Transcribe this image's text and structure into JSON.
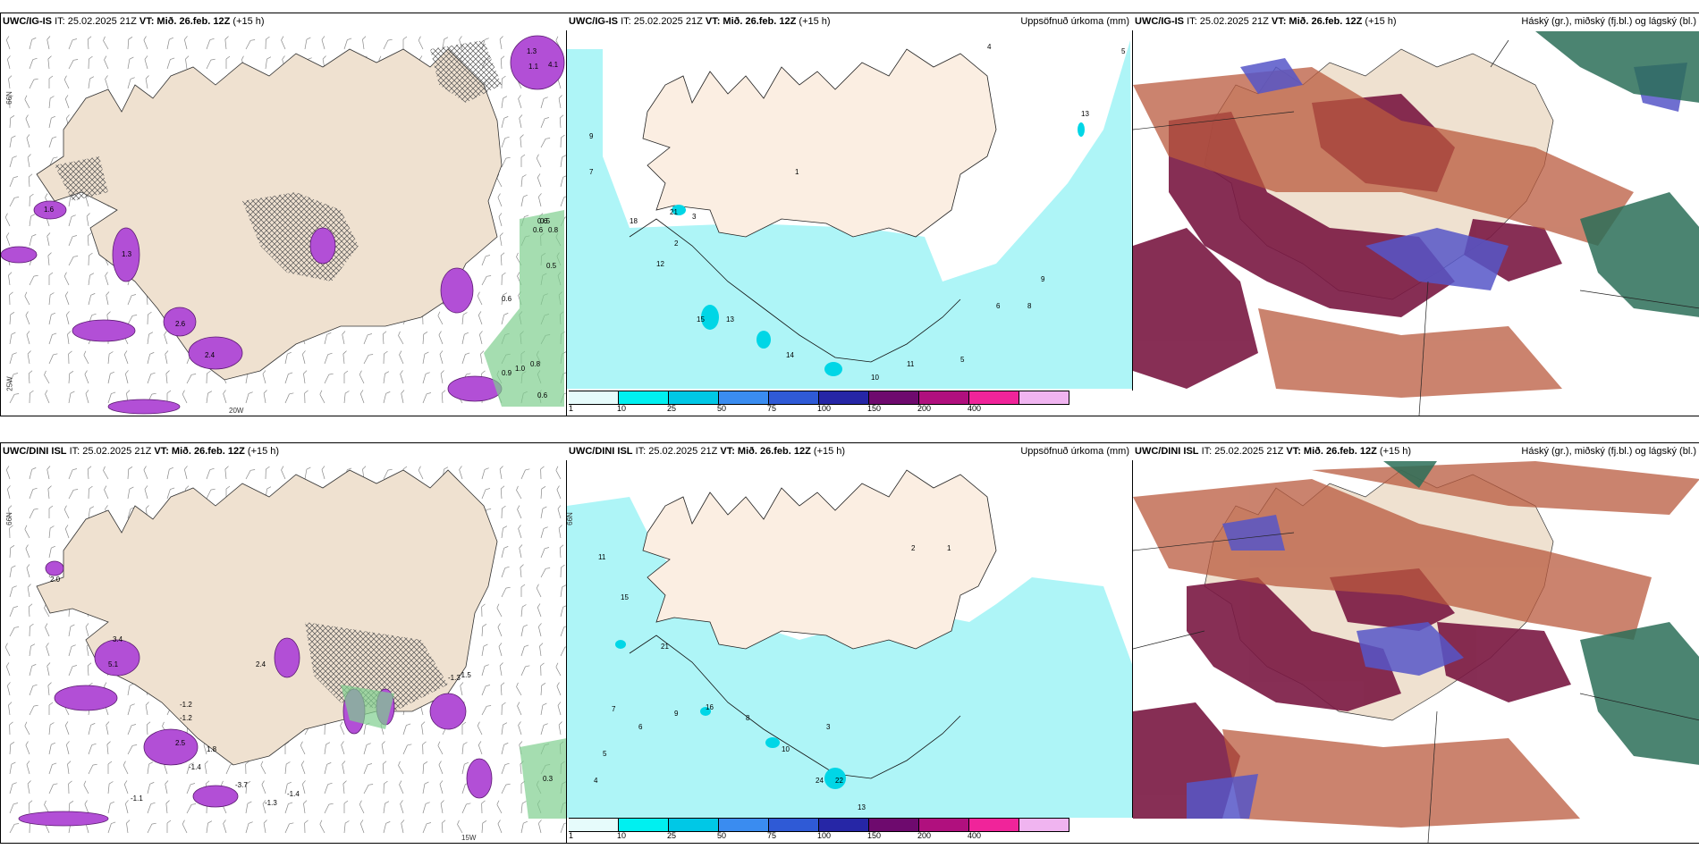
{
  "colors": {
    "land": "#efe1d0",
    "sea_precip": "#aef5f7",
    "convective": "#b24fd6",
    "hatch": "#555555",
    "green": "#7fcf8f",
    "high_cloud": "#7a1842",
    "mid_cloud": "#b95a3e",
    "low_cloud": "#5656c8",
    "dark_green": "#2c6e58"
  },
  "row1": {
    "panel1": {
      "model": "UWC/IG-IS",
      "it": "IT: 25.02.2025 21Z",
      "vt_label": "VT:",
      "vt": "Mið. 26.feb. 12Z",
      "lead": "(+15 h)",
      "lat_label": "66N",
      "lat_label2": "25W",
      "lon_label": "20W",
      "values": [
        "1.3",
        "1.1",
        "4.1",
        "1.6",
        "1.3",
        "2.6",
        "2.4",
        "0.5",
        "0.9",
        "1.0",
        "0.8",
        "0.6",
        "0.6",
        "0.6",
        "0.5",
        "0.8",
        "0.6"
      ]
    },
    "panel2": {
      "model": "UWC/IG-IS",
      "it": "IT: 25.02.2025 21Z",
      "vt_label": "VT:",
      "vt": "Mið. 26.feb. 12Z",
      "lead": "(+15 h)",
      "title": "Uppsöfnuð úrkoma (mm)",
      "values": [
        "4",
        "5",
        "13",
        "9",
        "7",
        "21",
        "18",
        "12",
        "15",
        "13",
        "14",
        "10",
        "9",
        "8",
        "6",
        "5",
        "3",
        "2",
        "1",
        "11"
      ]
    },
    "panel3": {
      "model": "UWC/IG-IS",
      "it": "IT: 25.02.2025 21Z",
      "vt_label": "VT:",
      "vt": "Mið. 26.feb. 12Z",
      "lead": "(+15 h)",
      "title": "Háský (gr.), miðský (fj.bl.) og lágský (bl.)"
    }
  },
  "row2": {
    "panel1": {
      "model": "UWC/DINI ISL",
      "it": "IT: 25.02.2025 21Z",
      "vt_label": "VT:",
      "vt": "Mið. 26.feb. 12Z",
      "lead": "(+15 h)",
      "lat_label": "66N",
      "lon_label": "15W",
      "values": [
        "2.0",
        "3.4",
        "5.1",
        "-1.2",
        "-1.2",
        "2.5",
        "-3.7",
        "-1.1",
        "-1.3",
        "-1.4",
        "2.4",
        "-1.5",
        "-1.3",
        "0.3",
        "1.8",
        "-1.4"
      ]
    },
    "panel2": {
      "model": "UWC/DINI ISL",
      "it": "IT: 25.02.2025 21Z",
      "vt_label": "VT:",
      "vt": "Mið. 26.feb. 12Z",
      "lead": "(+15 h)",
      "title": "Uppsöfnuð úrkoma (mm)",
      "lat_label": "66N",
      "values": [
        "11",
        "15",
        "21",
        "16",
        "22",
        "24",
        "13",
        "10",
        "9",
        "8",
        "7",
        "6",
        "5",
        "4",
        "3",
        "2",
        "1"
      ]
    },
    "panel3": {
      "model": "UWC/DINI ISL",
      "it": "IT: 25.02.2025 21Z",
      "vt_label": "VT:",
      "vt": "Mið. 26.feb. 12Z",
      "lead": "(+15 h)",
      "title": "Háský (gr.), miðský (fj.bl.) og lágský (bl.)"
    }
  },
  "colorbar": {
    "ticks": [
      "1",
      "10",
      "25",
      "50",
      "75",
      "100",
      "150",
      "200",
      "400"
    ],
    "colors": [
      "#e6fbfb",
      "#00f0f0",
      "#00c8e6",
      "#3a8cf0",
      "#2f5ad6",
      "#2626a6",
      "#6e0a6e",
      "#b0107e",
      "#f0249a",
      "#f0b4f0"
    ]
  }
}
